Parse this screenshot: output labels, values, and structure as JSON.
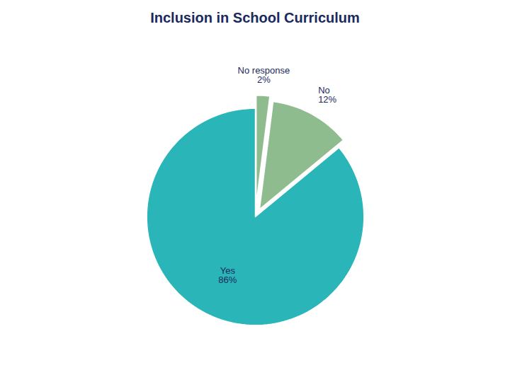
{
  "chart_data": {
    "type": "pie",
    "title": "Inclusion in School Curriculum",
    "categories": [
      "No response",
      "No",
      "Yes"
    ],
    "values": [
      2,
      12,
      86
    ],
    "value_labels": [
      "2%",
      "12%",
      "86%"
    ],
    "colors": [
      "#8fbc8f",
      "#8fbc8f",
      "#2ab5b8"
    ],
    "data_labels": true,
    "tick_labels": false
  }
}
